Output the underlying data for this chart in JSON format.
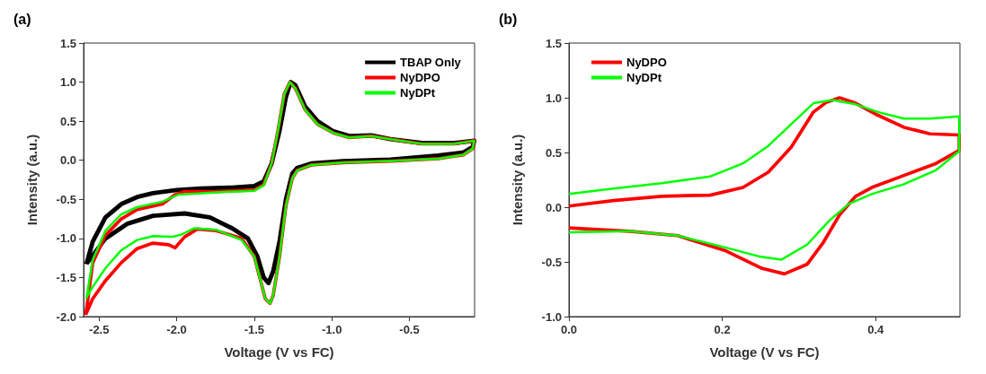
{
  "chart_data": [
    {
      "type": "line",
      "title": "(a)",
      "xlabel": "Voltage (V vs FC)",
      "ylabel": "Intensity (a.u.)",
      "xlim": [
        -2.6,
        -0.08
      ],
      "xticks": [
        -2.5,
        {
          "value": -2,
          "label": "-2.0"
        },
        -1.5,
        {
          "value": -1,
          "label": "-1.0"
        },
        -0.5
      ],
      "ylim": [
        -2.0,
        1.5
      ],
      "yticks": [
        {
          "value": -2,
          "label": "-2.0"
        },
        -1.5,
        {
          "value": -1,
          "label": "-1.0"
        },
        -0.5,
        {
          "value": 0,
          "label": "0.0"
        },
        0.5,
        {
          "value": 1,
          "label": "1.0"
        },
        1.5
      ],
      "legend": "top right",
      "grid": false,
      "marker": "none",
      "series": [
        {
          "name": "TBAP Only",
          "color": "#000000",
          "x": [
            -2.582,
            -2.541,
            -2.459,
            -2.357,
            -2.255,
            -2.153,
            -2.0,
            -1.847,
            -1.643,
            -1.5,
            -1.439,
            -1.388,
            -1.337,
            -1.296,
            -1.265,
            -1.235,
            -1.173,
            -1.092,
            -0.99,
            -0.888,
            -0.745,
            -0.622,
            -0.418,
            -0.214,
            -0.082,
            -0.092,
            -0.153,
            -0.316,
            -0.622,
            -0.929,
            -1.133,
            -1.224,
            -1.255,
            -1.296,
            -1.337,
            -1.378,
            -1.408,
            -1.439,
            -1.48,
            -1.541,
            -1.643,
            -1.786,
            -1.949,
            -2.153,
            -2.316,
            -2.459,
            -2.561,
            -2.58
          ],
          "values": [
            -1.33,
            -1.04,
            -0.73,
            -0.56,
            -0.47,
            -0.42,
            -0.38,
            -0.36,
            -0.35,
            -0.33,
            -0.27,
            -0.04,
            0.38,
            0.81,
            1.0,
            0.96,
            0.69,
            0.5,
            0.37,
            0.31,
            0.32,
            0.27,
            0.22,
            0.22,
            0.25,
            0.17,
            0.1,
            0.06,
            0.01,
            -0.01,
            -0.04,
            -0.1,
            -0.17,
            -0.5,
            -1.04,
            -1.42,
            -1.57,
            -1.5,
            -1.23,
            -1.0,
            -0.87,
            -0.73,
            -0.68,
            -0.71,
            -0.81,
            -1.0,
            -1.27,
            -1.32
          ]
        },
        {
          "name": "NyDPO",
          "color": "#ff0000",
          "x": [
            -2.586,
            -2.541,
            -2.459,
            -2.357,
            -2.255,
            -2.092,
            -2.01,
            -1.949,
            -1.745,
            -1.5,
            -1.439,
            -1.388,
            -1.347,
            -1.306,
            -1.27,
            -1.235,
            -1.173,
            -1.092,
            -0.99,
            -0.888,
            -0.745,
            -0.622,
            -0.418,
            -0.214,
            -0.082,
            -0.092,
            -0.153,
            -0.316,
            -0.622,
            -0.929,
            -1.133,
            -1.224,
            -1.255,
            -1.296,
            -1.337,
            -1.378,
            -1.398,
            -1.429,
            -1.459,
            -1.5,
            -1.582,
            -1.745,
            -1.867,
            -1.949,
            -2.01,
            -2.051,
            -2.153,
            -2.255,
            -2.357,
            -2.459,
            -2.541,
            -2.583
          ],
          "values": [
            -1.98,
            -1.31,
            -0.96,
            -0.75,
            -0.63,
            -0.56,
            -0.44,
            -0.4,
            -0.4,
            -0.38,
            -0.31,
            -0.04,
            0.38,
            0.85,
            1.0,
            0.92,
            0.65,
            0.46,
            0.35,
            0.29,
            0.31,
            0.27,
            0.21,
            0.21,
            0.25,
            0.15,
            0.07,
            0.02,
            -0.01,
            -0.03,
            -0.06,
            -0.13,
            -0.23,
            -0.58,
            -1.23,
            -1.73,
            -1.83,
            -1.77,
            -1.54,
            -1.23,
            -1.0,
            -0.9,
            -0.88,
            -0.98,
            -1.12,
            -1.08,
            -1.06,
            -1.13,
            -1.31,
            -1.54,
            -1.77,
            -1.96
          ]
        },
        {
          "name": "NyDPt",
          "color": "#00ff00",
          "x": [
            -2.582,
            -2.541,
            -2.459,
            -2.357,
            -2.255,
            -2.092,
            -1.99,
            -1.745,
            -1.5,
            -1.439,
            -1.388,
            -1.347,
            -1.306,
            -1.27,
            -1.235,
            -1.173,
            -1.092,
            -0.99,
            -0.888,
            -0.745,
            -0.622,
            -0.418,
            -0.214,
            -0.082,
            -0.092,
            -0.153,
            -0.316,
            -0.622,
            -0.929,
            -1.133,
            -1.224,
            -1.255,
            -1.296,
            -1.337,
            -1.378,
            -1.398,
            -1.429,
            -1.459,
            -1.5,
            -1.582,
            -1.745,
            -1.888,
            -1.969,
            -2.031,
            -2.153,
            -2.255,
            -2.357,
            -2.459,
            -2.541,
            -2.58
          ],
          "values": [
            -1.77,
            -1.27,
            -0.9,
            -0.69,
            -0.6,
            -0.53,
            -0.44,
            -0.41,
            -0.39,
            -0.32,
            -0.04,
            0.38,
            0.85,
            1.0,
            0.92,
            0.65,
            0.46,
            0.35,
            0.29,
            0.31,
            0.27,
            0.21,
            0.21,
            0.25,
            0.15,
            0.07,
            0.02,
            -0.01,
            -0.03,
            -0.06,
            -0.13,
            -0.23,
            -0.58,
            -1.23,
            -1.73,
            -1.83,
            -1.77,
            -1.54,
            -1.23,
            -1.02,
            -0.89,
            -0.87,
            -0.95,
            -0.98,
            -0.97,
            -1.02,
            -1.15,
            -1.38,
            -1.62,
            -1.75
          ]
        }
      ]
    },
    {
      "type": "line",
      "title": "(b)",
      "xlabel": "Voltage (V vs FC)",
      "ylabel": "Intensity (a.u.)",
      "xlim": [
        0,
        0.51
      ],
      "xticks": [
        {
          "value": 0,
          "label": "0.0"
        },
        0.2,
        0.4
      ],
      "ylim": [
        -1.0,
        1.5
      ],
      "yticks": [
        {
          "value": -1,
          "label": "-1.0"
        },
        -0.5,
        {
          "value": 0,
          "label": "0.0"
        },
        0.5,
        {
          "value": 1,
          "label": "1.0"
        },
        1.5
      ],
      "legend": "top left",
      "grid": false,
      "marker": "none",
      "series": [
        {
          "name": "NyDPO",
          "color": "#ff0000",
          "x": [
            0,
            0.058,
            0.121,
            0.184,
            0.227,
            0.26,
            0.29,
            0.319,
            0.336,
            0.353,
            0.374,
            0.403,
            0.437,
            0.471,
            0.509,
            0.509,
            0.479,
            0.437,
            0.395,
            0.374,
            0.353,
            0.332,
            0.311,
            0.281,
            0.252,
            0.205,
            0.142,
            0.079,
            0
          ],
          "values": [
            0.01,
            0.06,
            0.1,
            0.11,
            0.18,
            0.32,
            0.55,
            0.87,
            0.96,
            1.0,
            0.95,
            0.84,
            0.73,
            0.67,
            0.66,
            0.52,
            0.4,
            0.29,
            0.18,
            0.1,
            -0.07,
            -0.32,
            -0.52,
            -0.61,
            -0.56,
            -0.4,
            -0.26,
            -0.22,
            -0.19
          ]
        },
        {
          "name": "NyDPt",
          "color": "#00ff00",
          "x": [
            0,
            0.058,
            0.121,
            0.184,
            0.227,
            0.26,
            0.29,
            0.319,
            0.344,
            0.374,
            0.403,
            0.437,
            0.471,
            0.509,
            0.509,
            0.479,
            0.437,
            0.395,
            0.365,
            0.34,
            0.311,
            0.277,
            0.248,
            0.205,
            0.142,
            0.079,
            0
          ],
          "values": [
            0.12,
            0.17,
            0.22,
            0.28,
            0.4,
            0.56,
            0.76,
            0.95,
            0.98,
            0.94,
            0.87,
            0.81,
            0.81,
            0.83,
            0.51,
            0.34,
            0.21,
            0.12,
            0.03,
            -0.12,
            -0.34,
            -0.48,
            -0.45,
            -0.37,
            -0.26,
            -0.22,
            -0.23
          ]
        }
      ]
    }
  ]
}
